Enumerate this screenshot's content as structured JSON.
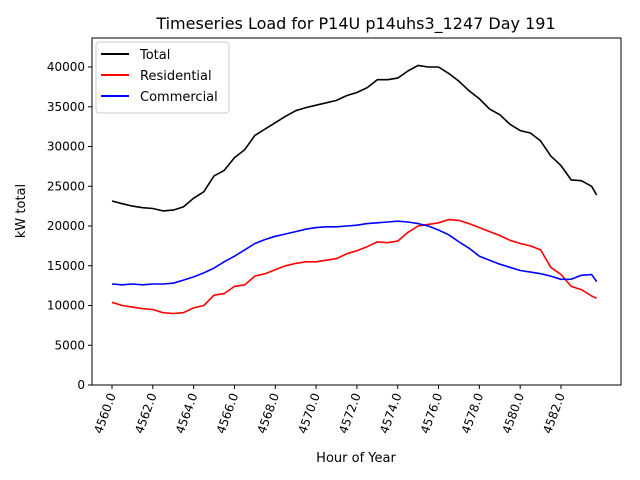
{
  "chart_data": {
    "type": "line",
    "title": "Timeseries Load for P14U p14uhs3_1247  Day 191",
    "xlabel": "Hour of Year",
    "ylabel": "kW total",
    "xlim": [
      4559.02,
      4584.94
    ],
    "ylim": [
      0,
      43650
    ],
    "xticks": [
      4560,
      4562,
      4564,
      4566,
      4568,
      4570,
      4572,
      4574,
      4576,
      4578,
      4580,
      4582
    ],
    "xtick_labels": [
      "4560.0",
      "4562.0",
      "4564.0",
      "4566.0",
      "4568.0",
      "4570.0",
      "4572.0",
      "4574.0",
      "4576.0",
      "4578.0",
      "4580.0",
      "4582.0"
    ],
    "yticks": [
      0,
      5000,
      10000,
      15000,
      20000,
      25000,
      30000,
      35000,
      40000
    ],
    "ytick_labels": [
      "0",
      "5000",
      "10000",
      "15000",
      "20000",
      "25000",
      "30000",
      "35000",
      "40000"
    ],
    "grid": false,
    "legend_position": "top-left",
    "x": [
      4560,
      4560.5,
      4561,
      4561.5,
      4562,
      4562.5,
      4563,
      4563.5,
      4564,
      4564.5,
      4565,
      4565.5,
      4566,
      4566.5,
      4567,
      4567.5,
      4568,
      4568.5,
      4569,
      4569.5,
      4570,
      4570.5,
      4571,
      4571.5,
      4572,
      4572.5,
      4573,
      4573.5,
      4574,
      4574.5,
      4575,
      4575.5,
      4576,
      4576.5,
      4577,
      4577.5,
      4578,
      4578.5,
      4579,
      4579.5,
      4580,
      4580.5,
      4581,
      4581.5,
      4582,
      4582.5,
      4583,
      4583.5,
      4583.75
    ],
    "series": [
      {
        "name": "Total",
        "color": "#000000",
        "values": [
          23150,
          22800,
          22500,
          22300,
          22200,
          21900,
          22000,
          22400,
          23500,
          24300,
          26300,
          27000,
          28600,
          29600,
          31400,
          32200,
          33000,
          33800,
          34500,
          34900,
          35200,
          35500,
          35800,
          36400,
          36800,
          37400,
          38400,
          38400,
          38600,
          39500,
          40200,
          40000,
          40000,
          39200,
          38200,
          37000,
          36000,
          34700,
          34000,
          32800,
          32000,
          31700,
          30700,
          28800,
          27600,
          25800,
          25700,
          25000,
          23900
        ]
      },
      {
        "name": "Residential",
        "color": "#ff0000",
        "values": [
          10400,
          10000,
          9800,
          9600,
          9500,
          9100,
          9000,
          9100,
          9700,
          10000,
          11300,
          11500,
          12400,
          12600,
          13700,
          14000,
          14500,
          15000,
          15300,
          15500,
          15500,
          15700,
          15900,
          16500,
          16900,
          17400,
          18000,
          17900,
          18100,
          19200,
          20000,
          20200,
          20400,
          20800,
          20700,
          20300,
          19800,
          19300,
          18800,
          18200,
          17800,
          17500,
          17000,
          14800,
          13900,
          12400,
          12000,
          11200,
          10900
        ]
      },
      {
        "name": "Commercial",
        "color": "#0000ff",
        "values": [
          12700,
          12600,
          12700,
          12600,
          12700,
          12700,
          12800,
          13200,
          13600,
          14100,
          14700,
          15500,
          16200,
          17000,
          17800,
          18300,
          18700,
          19000,
          19300,
          19600,
          19800,
          19900,
          19900,
          20000,
          20100,
          20300,
          20400,
          20500,
          20600,
          20500,
          20300,
          20000,
          19500,
          18900,
          18000,
          17200,
          16200,
          15700,
          15200,
          14800,
          14400,
          14200,
          14000,
          13700,
          13300,
          13300,
          13800,
          13900,
          13000
        ]
      }
    ]
  }
}
